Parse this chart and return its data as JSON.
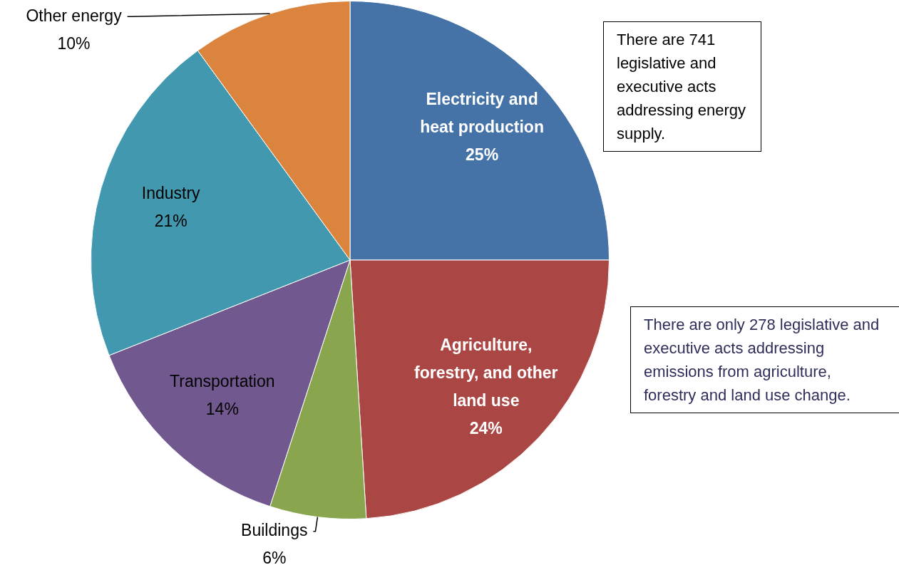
{
  "chart_data": {
    "type": "pie",
    "categories": [
      "Electricity and heat production",
      "Agriculture, forestry, and other land use",
      "Buildings",
      "Transportation",
      "Industry",
      "Other energy"
    ],
    "values": [
      25,
      24,
      6,
      14,
      21,
      10
    ],
    "value_labels": [
      "25%",
      "24%",
      "6%",
      "14%",
      "21%",
      "10%"
    ],
    "colors": [
      "#4572a7",
      "#aa4643",
      "#89a54e",
      "#71588f",
      "#4198af",
      "#db843d"
    ],
    "legend": false,
    "annotations": [
      "There are 741 legislative and executive acts addressing energy supply.",
      "There are only 278 legislative and executive acts addressing emissions from  agriculture, forestry and land use change."
    ]
  }
}
